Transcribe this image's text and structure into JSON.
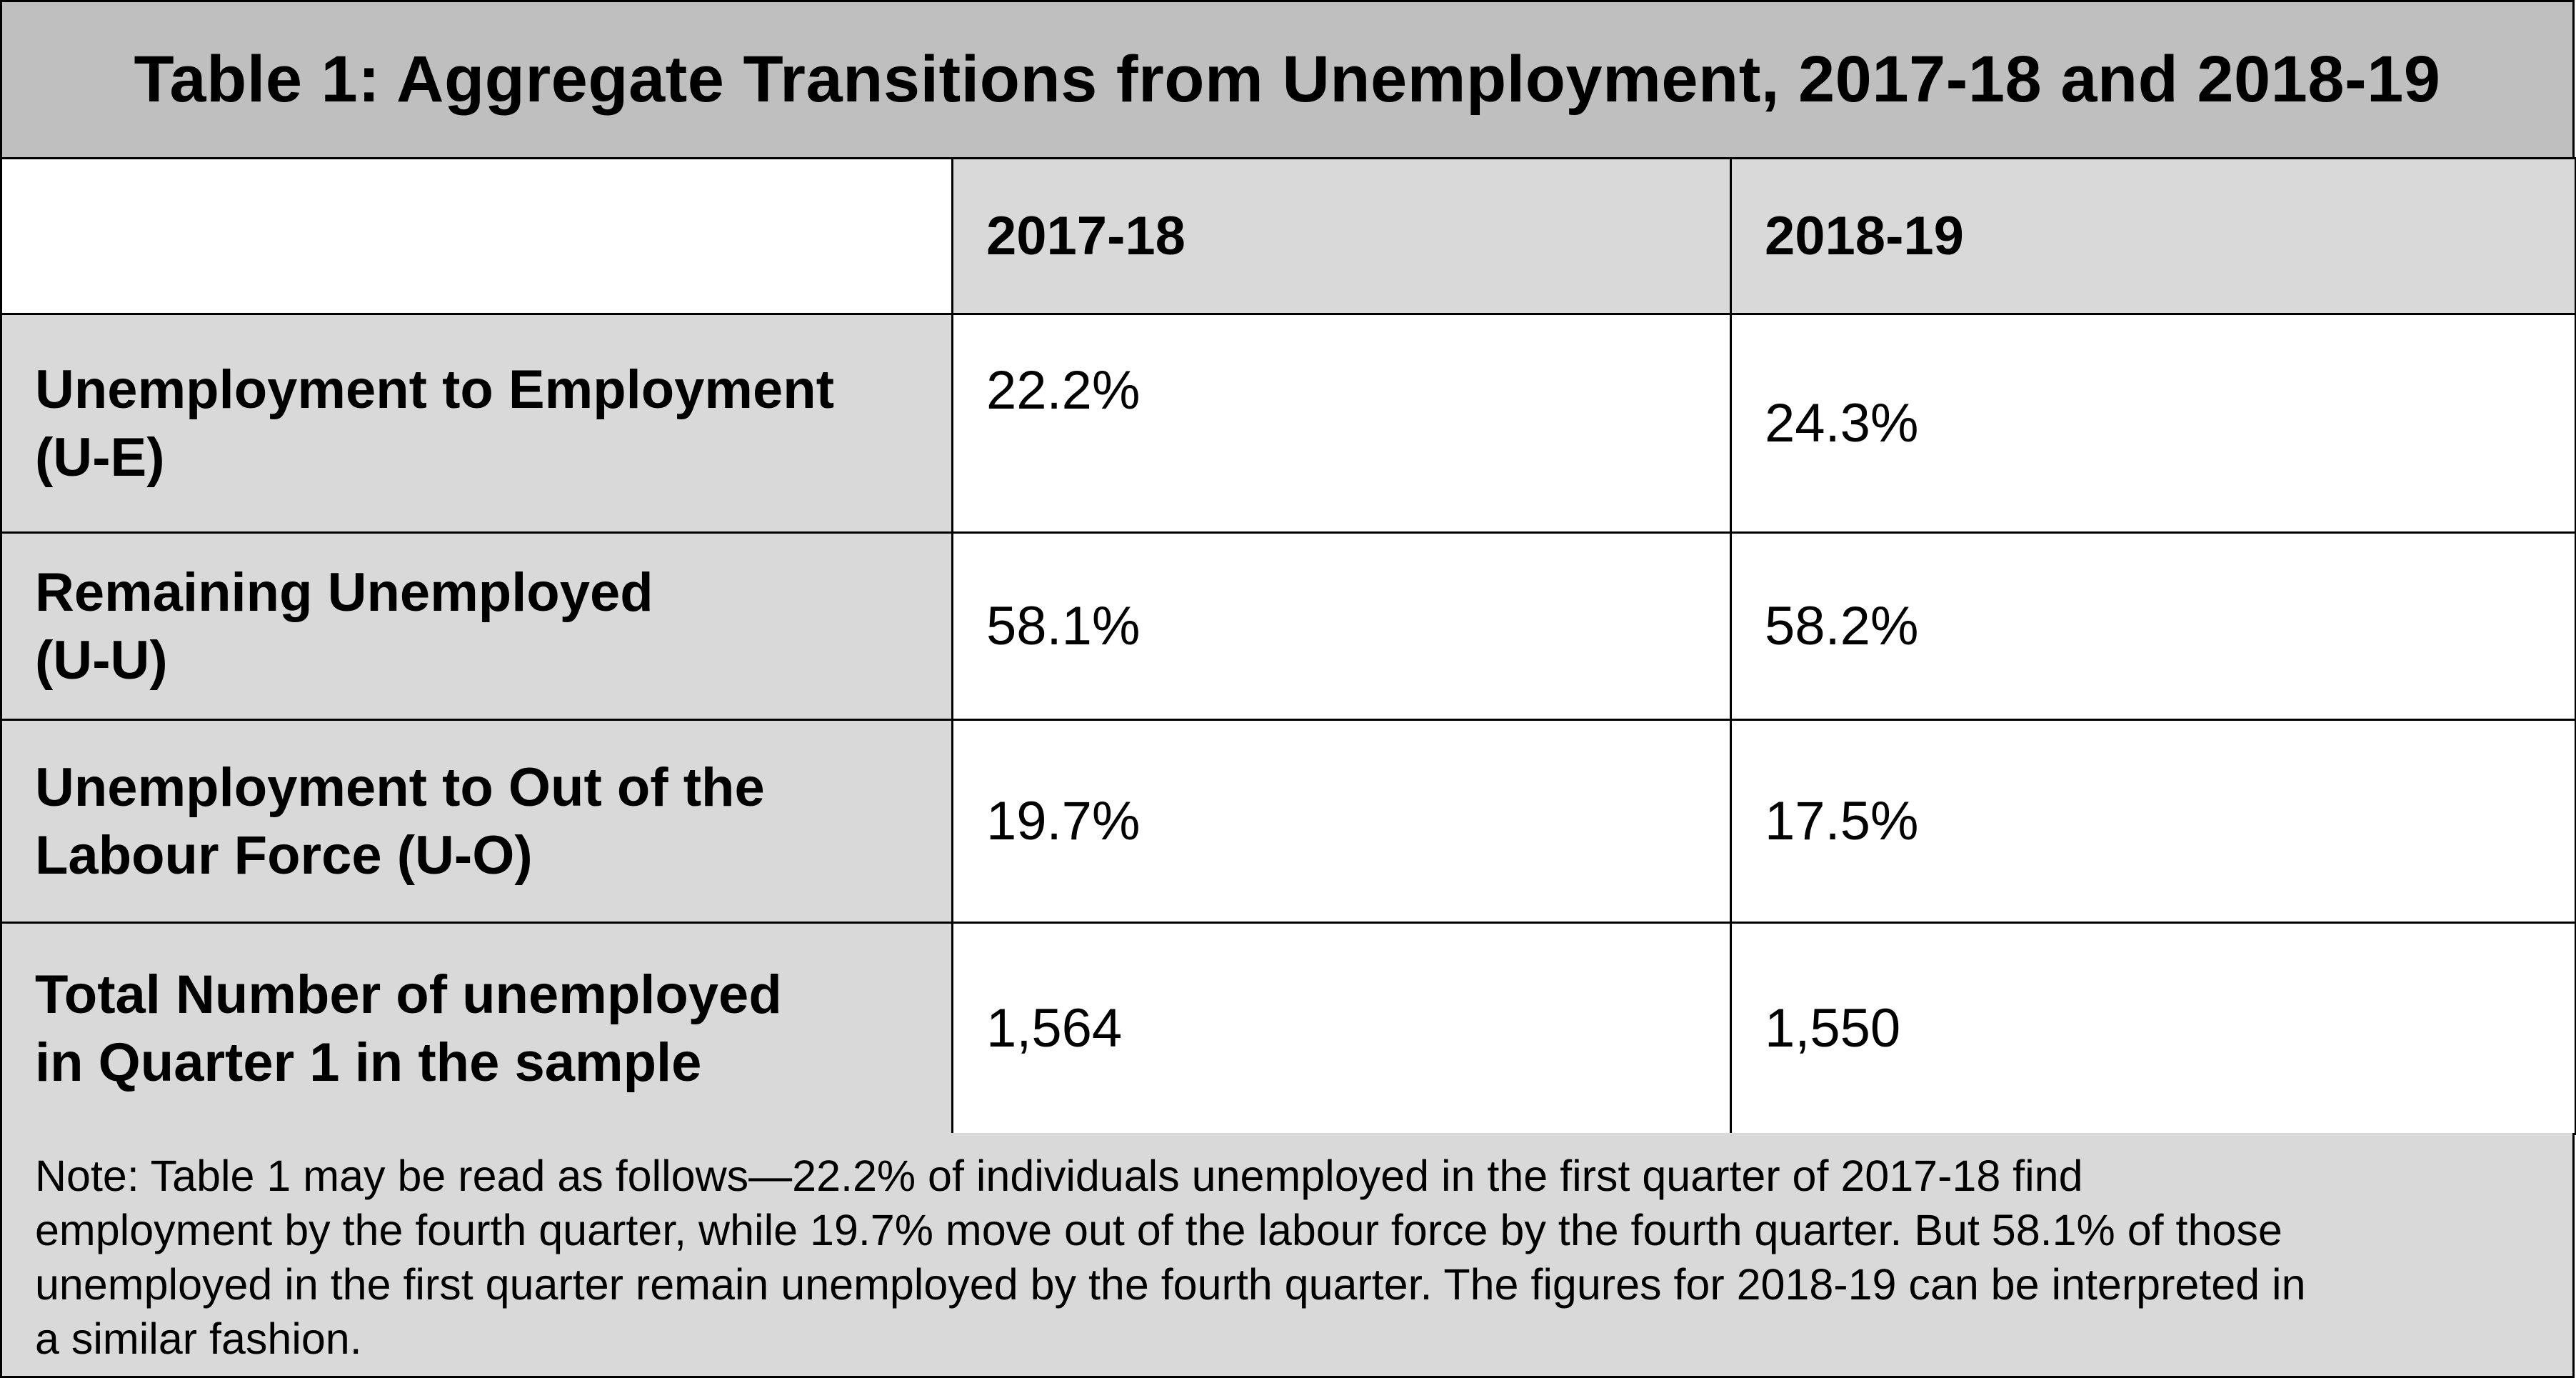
{
  "chart_data": {
    "type": "table",
    "title": "Table 1: Aggregate Transitions from Unemployment, 2017-18 and 2018-19",
    "columns": [
      "",
      "2017-18",
      "2018-19"
    ],
    "rows": [
      {
        "label_lines": [
          "Unemployment to Employment",
          "(U-E)"
        ],
        "values": [
          "22.2%",
          "24.3%"
        ]
      },
      {
        "label_lines": [
          "Remaining Unemployed",
          "(U-U)"
        ],
        "values": [
          "58.1%",
          "58.2%"
        ]
      },
      {
        "label_lines": [
          "Unemployment to Out of the",
          "Labour Force (U-O)"
        ],
        "values": [
          "19.7%",
          "17.5%"
        ]
      },
      {
        "label_lines": [
          "Total Number of unemployed",
          "in Quarter 1 in the sample"
        ],
        "values": [
          "1,564",
          "1,550"
        ]
      }
    ],
    "note_lines": [
      "Note: Table 1 may be read as follows—22.2% of individuals unemployed in the first quarter of 2017-18 find",
      "employment by the fourth quarter, while 19.7% move out of the labour force by the fourth quarter. But 58.1% of those",
      "unemployed in the first quarter remain unemployed by the fourth quarter. The figures for 2018-19 can be interpreted in",
      "a similar fashion."
    ],
    "colors": {
      "title_background": "#bfbfbf",
      "header_background": "#d9d9d9",
      "label_background": "#d9d9d9",
      "value_background": "#ffffff",
      "border": "#000000"
    }
  }
}
